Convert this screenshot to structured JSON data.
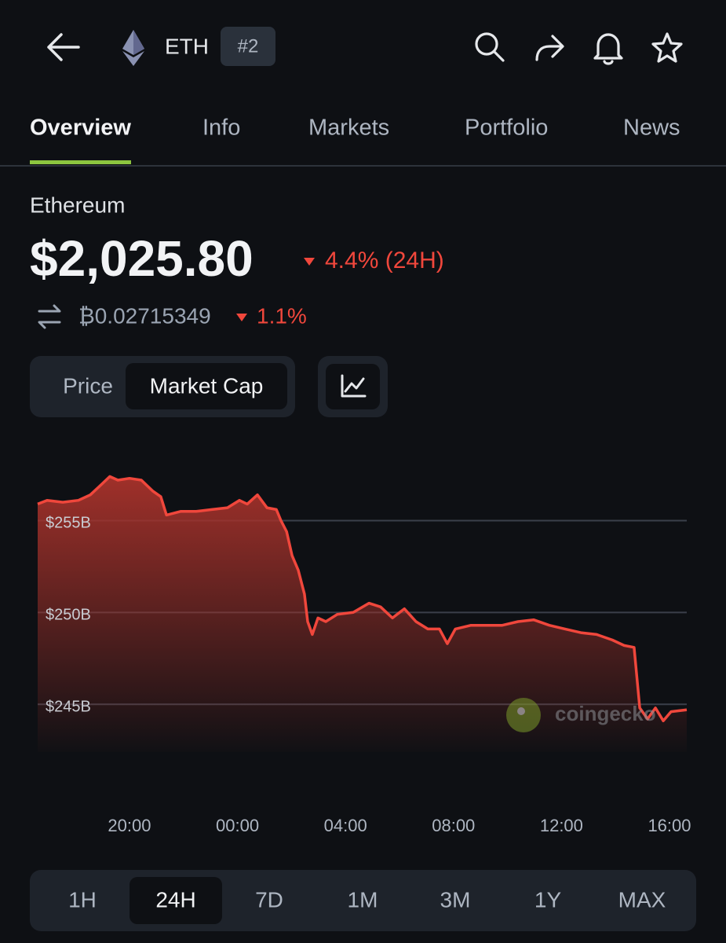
{
  "header": {
    "symbol": "ETH",
    "rank": "#2"
  },
  "tabs": {
    "items": [
      "Overview",
      "Info",
      "Markets",
      "Portfolio",
      "News"
    ],
    "active_index": 0
  },
  "coin": {
    "name": "Ethereum",
    "price": "$2,025.80",
    "change": "4.4% (24H)",
    "btc_price": "₿0.02715349",
    "btc_change": "1.1%"
  },
  "toggle": {
    "items": [
      "Price",
      "Market Cap"
    ],
    "active_index": 1
  },
  "watermark": "coingecko",
  "ranges": {
    "items": [
      "1H",
      "24H",
      "7D",
      "1M",
      "3M",
      "1Y",
      "MAX"
    ],
    "active_index": 1
  },
  "chart_data": {
    "type": "area",
    "color": "#f0473c",
    "grid": true,
    "x": [
      16.6,
      16.95,
      17.53,
      18.11,
      18.55,
      18.84,
      19.27,
      19.57,
      20.0,
      20.44,
      20.87,
      21.16,
      21.37,
      21.89,
      22.47,
      23.05,
      23.63,
      24.07,
      24.36,
      24.74,
      25.09,
      25.44,
      25.61,
      25.82,
      26.02,
      26.25,
      26.48,
      26.6,
      26.77,
      26.98,
      27.27,
      27.7,
      28.29,
      28.87,
      29.3,
      29.74,
      30.18,
      30.61,
      31.05,
      31.48,
      31.77,
      32.07,
      32.65,
      33.23,
      33.81,
      34.39,
      34.97,
      35.55,
      36.13,
      36.72,
      37.3,
      37.88,
      38.32,
      38.69,
      38.9,
      39.19,
      39.48,
      39.77,
      40.06,
      40.64
    ],
    "values": [
      255.9,
      256.1,
      256.0,
      256.1,
      256.4,
      256.8,
      257.4,
      257.2,
      257.3,
      257.2,
      256.6,
      256.3,
      255.3,
      255.5,
      255.5,
      255.6,
      255.7,
      256.1,
      255.9,
      256.4,
      255.7,
      255.6,
      255.0,
      254.4,
      253.1,
      252.3,
      251.0,
      249.5,
      248.8,
      249.7,
      249.5,
      249.9,
      250.0,
      250.5,
      250.3,
      249.7,
      250.2,
      249.5,
      249.1,
      249.1,
      248.3,
      249.1,
      249.3,
      249.3,
      249.3,
      249.5,
      249.6,
      249.3,
      249.1,
      248.9,
      248.8,
      248.5,
      248.2,
      248.1,
      244.8,
      244.2,
      244.8,
      244.1,
      244.6,
      244.7
    ],
    "xlim": [
      16.6,
      40.64
    ],
    "ylim": [
      242.4,
      257.8
    ],
    "yticks": [
      {
        "value": 245,
        "label": "$245B"
      },
      {
        "value": 250,
        "label": "$250B"
      },
      {
        "value": 255,
        "label": "$255B"
      }
    ],
    "xticks": [
      {
        "value": 20,
        "label": "20:00"
      },
      {
        "value": 24,
        "label": "00:00"
      },
      {
        "value": 28,
        "label": "04:00"
      },
      {
        "value": 32,
        "label": "08:00"
      },
      {
        "value": 36,
        "label": "12:00"
      },
      {
        "value": 40,
        "label": "16:00"
      }
    ]
  }
}
